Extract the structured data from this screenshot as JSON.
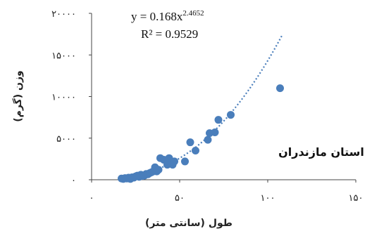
{
  "chart_data": {
    "type": "scatter",
    "title": "",
    "xlabel": "طول (سانتی متر)",
    "ylabel": "وزن (گرم)",
    "xlim": [
      0,
      150
    ],
    "ylim": [
      0,
      20000
    ],
    "x_ticks": [
      0,
      50,
      100,
      150
    ],
    "y_ticks": [
      0,
      5000,
      10000,
      15000,
      20000
    ],
    "x_tick_labels": [
      "۰",
      "۵۰",
      "۱۰۰",
      "۱۵۰"
    ],
    "y_tick_labels": [
      "۰",
      "۵۰۰۰",
      "۱۰۰۰۰",
      "۱۵۰۰۰",
      "۲۰۰۰۰"
    ],
    "grid": false,
    "annotations": {
      "region": "استان مازندران"
    },
    "trendline": {
      "type": "power",
      "coefficient": 0.168,
      "exponent": 2.4652,
      "equation_prefix": "y = 0.168x",
      "equation_exponent": "2.4652",
      "r_squared": "R² = 0.9529",
      "x_range": [
        17,
        108
      ],
      "color": "#4a7ebb",
      "style": "dotted"
    },
    "marker_color": "#4a7ebb",
    "points": [
      {
        "x": 17,
        "y": 150
      },
      {
        "x": 18,
        "y": 100
      },
      {
        "x": 19,
        "y": 200
      },
      {
        "x": 20,
        "y": 150
      },
      {
        "x": 21,
        "y": 250
      },
      {
        "x": 22,
        "y": 100
      },
      {
        "x": 23,
        "y": 300
      },
      {
        "x": 24,
        "y": 250
      },
      {
        "x": 25,
        "y": 400
      },
      {
        "x": 26,
        "y": 500
      },
      {
        "x": 27,
        "y": 350
      },
      {
        "x": 28,
        "y": 600
      },
      {
        "x": 29,
        "y": 450
      },
      {
        "x": 30,
        "y": 500
      },
      {
        "x": 31,
        "y": 700
      },
      {
        "x": 32,
        "y": 650
      },
      {
        "x": 33,
        "y": 800
      },
      {
        "x": 34,
        "y": 900
      },
      {
        "x": 35,
        "y": 1000
      },
      {
        "x": 36,
        "y": 1500
      },
      {
        "x": 37,
        "y": 1000
      },
      {
        "x": 38,
        "y": 1200
      },
      {
        "x": 39,
        "y": 2600
      },
      {
        "x": 41,
        "y": 2400
      },
      {
        "x": 43,
        "y": 1800
      },
      {
        "x": 44,
        "y": 2600
      },
      {
        "x": 45,
        "y": 2000
      },
      {
        "x": 46,
        "y": 1800
      },
      {
        "x": 47,
        "y": 2200
      },
      {
        "x": 53,
        "y": 2200
      },
      {
        "x": 56,
        "y": 4500
      },
      {
        "x": 59,
        "y": 3500
      },
      {
        "x": 66,
        "y": 4800
      },
      {
        "x": 67,
        "y": 5600
      },
      {
        "x": 70,
        "y": 5700
      },
      {
        "x": 72,
        "y": 7200
      },
      {
        "x": 79,
        "y": 7800
      },
      {
        "x": 107,
        "y": 11000
      }
    ]
  }
}
